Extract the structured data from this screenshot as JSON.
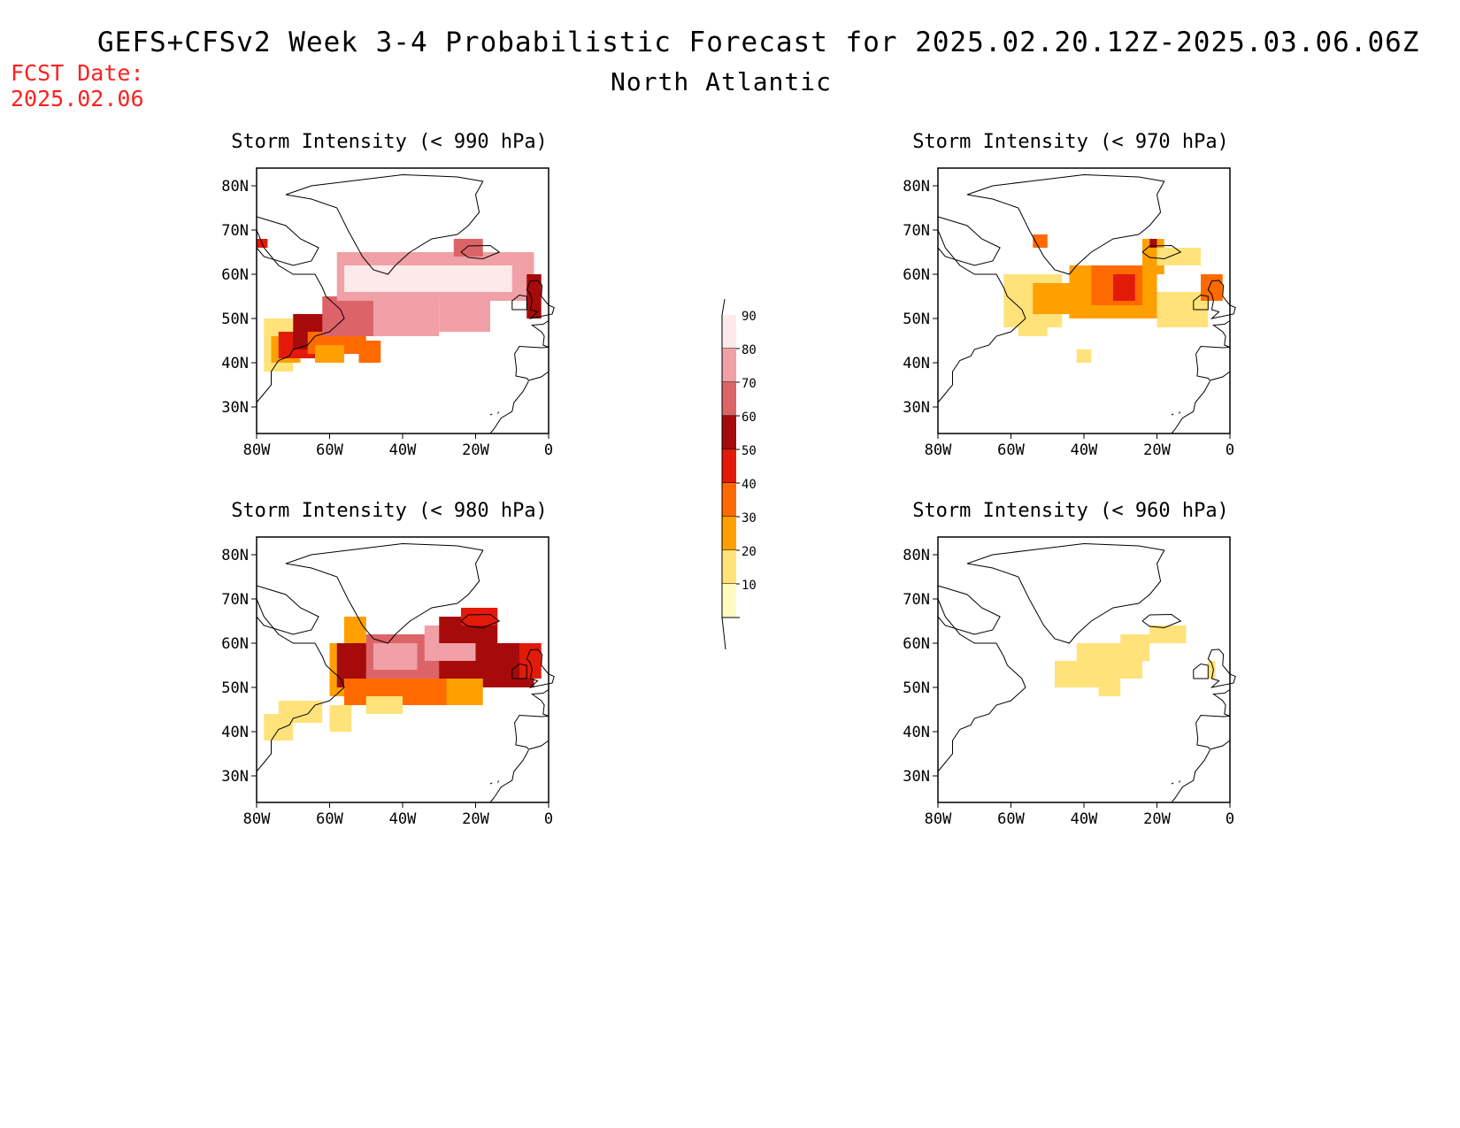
{
  "header": {
    "title": "GEFS+CFSv2 Week 3-4 Probabilistic Forecast for 2025.02.20.12Z-2025.03.06.06Z",
    "region": "North Atlantic",
    "fcst_label": "FCST Date:",
    "fcst_date": "2025.02.06"
  },
  "axes": {
    "lat_labels": [
      "80N",
      "70N",
      "60N",
      "50N",
      "40N",
      "30N"
    ],
    "lon_labels": [
      "80W",
      "60W",
      "40W",
      "20W",
      "0"
    ]
  },
  "panels": [
    {
      "title": "Storm Intensity (< 990 hPa)",
      "threshold": "990"
    },
    {
      "title": "Storm Intensity (< 970 hPa)",
      "threshold": "970"
    },
    {
      "title": "Storm Intensity (< 980 hPa)",
      "threshold": "980"
    },
    {
      "title": "Storm Intensity (< 960 hPa)",
      "threshold": "960"
    }
  ],
  "colorbar": {
    "labels": [
      "90",
      "80",
      "70",
      "60",
      "50",
      "40",
      "30",
      "20",
      "10"
    ],
    "colors": [
      "#fde8ea",
      "#f0a0a6",
      "#dc6468",
      "#a60a0a",
      "#e21a0a",
      "#ff6a00",
      "#ffa000",
      "#ffe27a",
      "#fffbc0"
    ]
  }
}
